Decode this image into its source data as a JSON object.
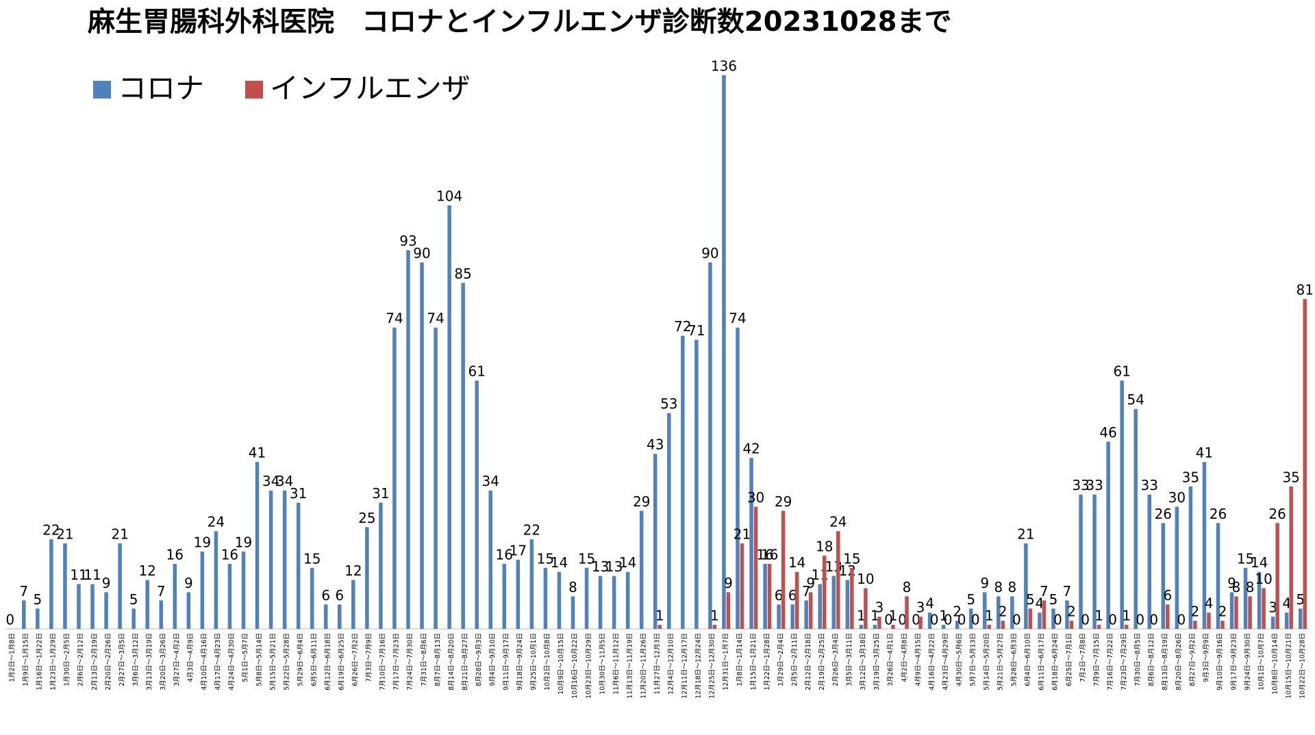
{
  "chart_data": {
    "type": "bar",
    "title": "麻生胃腸科外科医院　コロナとインフルエンザ診断数20231028まで",
    "categories": [
      "1月2日～1月8日",
      "1月9日～1月15日",
      "1月16日～1月22日",
      "1月23日～1月29日",
      "1月30日～2月5日",
      "2月6日～2月12日",
      "2月13日～2月19日",
      "2月20日～2月26日",
      "2月27日～3月5日",
      "3月6日～3月12日",
      "3月13日～3月19日",
      "3月20日～3月26日",
      "3月27日～4月2日",
      "4月3日～4月9日",
      "4月10日～4月16日",
      "4月17日～4月23日",
      "4月24日～4月30日",
      "5月1日～5月7日",
      "5月8日～5月14日",
      "5月15日～5月21日",
      "5月22日～5月28日",
      "5月29日～6月4日",
      "6月5日～6月11日",
      "6月12日～6月18日",
      "6月19日～6月25日",
      "6月26日～7月2日",
      "7月3日～7月9日",
      "7月10日～7月16日",
      "7月17日～7月23日",
      "7月24日～7月30日",
      "7月31日～8月6日",
      "8月7日～8月13日",
      "8月14日～8月20日",
      "8月21日～8月27日",
      "8月28日～9月3日",
      "9月4日～9月10日",
      "9月11日～9月17日",
      "9月18日～9月24日",
      "9月25日～10月1日",
      "10月2日～10月8日",
      "10月9日～10月15日",
      "10月16日～10月22日",
      "10月23日～10月29日",
      "10月30日～11月5日",
      "11月6日～11月12日",
      "11月13日～11月19日",
      "11月20日～11月26日",
      "11月27日～12月3日",
      "12月4日～12月10日",
      "12月11日～12月17日",
      "12月18日～12月24日",
      "12月25日～12月30日",
      "12月31日～1月7日",
      "1月8日～1月14日",
      "1月15日～1月21日",
      "1月22日～1月28日",
      "1月29日～2月4日",
      "2月5日～2月11日",
      "2月12日～2月18日",
      "2月19日～2月25日",
      "2月26日～3月4日",
      "3月5日～3月11日",
      "3月12日～3月18日",
      "3月19日～3月25日",
      "3月26日～4月1日",
      "4月2日～4月8日",
      "4月9日～4月15日",
      "4月16日～4月22日",
      "4月23日～4月29日",
      "4月30日～5月6日",
      "5月7日～5月13日",
      "5月14日～5月20日",
      "5月21日～5月27日",
      "5月28日～6月3日",
      "6月4日～6月10日",
      "6月11日～6月17日",
      "6月18日～6月24日",
      "6月25日～7月1日",
      "7月2日～7月8日",
      "7月9日～7月15日",
      "7月16日～7月22日",
      "7月23日～7月29日",
      "7月30日～8月5日",
      "8月6日～8月12日",
      "8月13日～8月19日",
      "8月20日～8月26日",
      "8月27日～9月2日",
      "9月3日～9月9日",
      "9月10日～9月16日",
      "9月17日～9月23日",
      "9月24日～9月30日",
      "10月1日～10月7日",
      "10月8日～10月14日",
      "10月15日～10月21日",
      "10月22日～10月28日"
    ],
    "series": [
      {
        "name": "コロナ",
        "color": "#4f81bd",
        "values": [
          0,
          7,
          5,
          22,
          21,
          11,
          11,
          9,
          21,
          5,
          12,
          7,
          16,
          9,
          19,
          24,
          16,
          19,
          41,
          34,
          34,
          31,
          15,
          6,
          6,
          12,
          25,
          31,
          74,
          93,
          90,
          74,
          104,
          85,
          61,
          34,
          16,
          17,
          22,
          15,
          14,
          8,
          15,
          13,
          13,
          14,
          29,
          43,
          53,
          72,
          71,
          90,
          136,
          74,
          42,
          16,
          6,
          6,
          7,
          11,
          13,
          12,
          1,
          1,
          0,
          0,
          0,
          4,
          1,
          2,
          5,
          9,
          8,
          8,
          21,
          4,
          5,
          7,
          33,
          33,
          46,
          61,
          54,
          33,
          26,
          30,
          35,
          41,
          26,
          9,
          15,
          14,
          3,
          4,
          5
        ]
      },
      {
        "name": "インフルエンザ",
        "color": "#c0504d",
        "values": [
          null,
          null,
          null,
          null,
          null,
          null,
          null,
          null,
          null,
          null,
          null,
          null,
          null,
          null,
          null,
          null,
          null,
          null,
          null,
          null,
          null,
          null,
          null,
          null,
          null,
          null,
          null,
          null,
          null,
          null,
          null,
          null,
          null,
          null,
          null,
          null,
          null,
          null,
          null,
          null,
          null,
          null,
          null,
          null,
          null,
          null,
          null,
          1,
          null,
          null,
          null,
          1,
          9,
          21,
          30,
          16,
          29,
          14,
          9,
          18,
          24,
          15,
          10,
          3,
          1,
          8,
          3,
          0,
          0,
          0,
          0,
          1,
          2,
          0,
          5,
          7,
          0,
          2,
          0,
          1,
          0,
          1,
          0,
          0,
          6,
          0,
          2,
          4,
          2,
          8,
          8,
          10,
          26,
          35,
          81
        ]
      }
    ],
    "ylim": [
      0,
      140
    ]
  }
}
